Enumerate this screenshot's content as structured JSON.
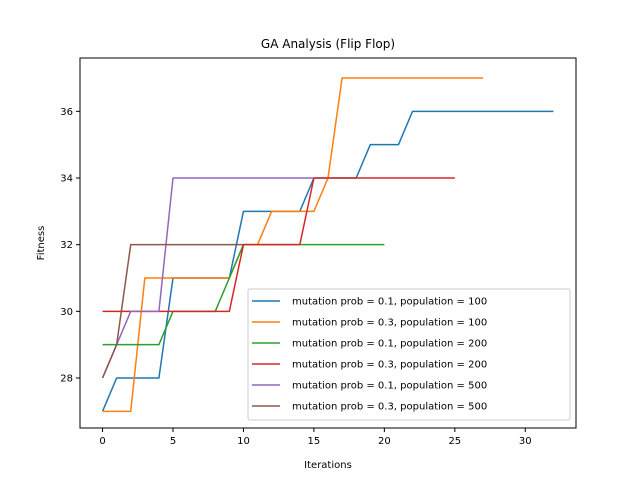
{
  "chart_data": {
    "type": "line",
    "title": "GA Analysis (Flip Flop)",
    "xlabel": "Iterations",
    "ylabel": "Fitness",
    "xlim": [
      -1.6,
      33.6
    ],
    "ylim": [
      26.5,
      37.6
    ],
    "xticks": [
      0,
      5,
      10,
      15,
      20,
      25,
      30
    ],
    "yticks": [
      28,
      30,
      32,
      34,
      36
    ],
    "grid": false,
    "legend_position": "lower-right",
    "series": [
      {
        "name": "mutation prob = 0.1, population = 100",
        "color": "#1f77b4",
        "x": [
          0,
          1,
          2,
          3,
          4,
          5,
          6,
          7,
          8,
          9,
          10,
          11,
          12,
          13,
          14,
          15,
          16,
          17,
          18,
          19,
          20,
          21,
          22,
          23,
          24,
          25,
          26,
          27,
          28,
          29,
          30,
          31,
          32
        ],
        "y": [
          27,
          28,
          28,
          28,
          28,
          31,
          31,
          31,
          31,
          31,
          33,
          33,
          33,
          33,
          33,
          34,
          34,
          34,
          34,
          35,
          35,
          35,
          36,
          36,
          36,
          36,
          36,
          36,
          36,
          36,
          36,
          36,
          36
        ]
      },
      {
        "name": "mutation prob = 0.3, population = 100",
        "color": "#ff7f0e",
        "x": [
          0,
          1,
          2,
          3,
          4,
          5,
          6,
          7,
          8,
          9,
          10,
          11,
          12,
          13,
          14,
          15,
          16,
          17,
          18,
          19,
          20,
          21,
          22,
          23,
          24,
          25,
          26,
          27
        ],
        "y": [
          27,
          27,
          27,
          31,
          31,
          31,
          31,
          31,
          31,
          31,
          32,
          32,
          33,
          33,
          33,
          33,
          34,
          37,
          37,
          37,
          37,
          37,
          37,
          37,
          37,
          37,
          37,
          37
        ]
      },
      {
        "name": "mutation prob = 0.1, population = 200",
        "color": "#2ca02c",
        "x": [
          0,
          1,
          2,
          3,
          4,
          5,
          6,
          7,
          8,
          9,
          10,
          11,
          12,
          13,
          14,
          15,
          16,
          17,
          18,
          19,
          20
        ],
        "y": [
          29,
          29,
          29,
          29,
          29,
          30,
          30,
          30,
          30,
          31,
          32,
          32,
          32,
          32,
          32,
          32,
          32,
          32,
          32,
          32,
          32
        ]
      },
      {
        "name": "mutation prob = 0.3, population = 200",
        "color": "#d62728",
        "x": [
          0,
          1,
          2,
          3,
          4,
          5,
          6,
          7,
          8,
          9,
          10,
          11,
          12,
          13,
          14,
          15,
          16,
          17,
          18,
          19,
          20,
          21,
          22,
          23,
          24,
          25
        ],
        "y": [
          30,
          30,
          30,
          30,
          30,
          30,
          30,
          30,
          30,
          30,
          32,
          32,
          32,
          32,
          32,
          34,
          34,
          34,
          34,
          34,
          34,
          34,
          34,
          34,
          34,
          34
        ]
      },
      {
        "name": "mutation prob = 0.1, population = 500",
        "color": "#9467bd",
        "x": [
          0,
          1,
          2,
          3,
          4,
          5,
          6,
          7,
          8,
          9,
          10,
          11,
          12,
          13,
          14,
          15
        ],
        "y": [
          28,
          29,
          30,
          30,
          30,
          34,
          34,
          34,
          34,
          34,
          34,
          34,
          34,
          34,
          34,
          34
        ]
      },
      {
        "name": "mutation prob = 0.3, population = 500",
        "color": "#8c564b",
        "x": [
          0,
          1,
          2,
          3,
          4,
          5,
          6,
          7,
          8,
          9,
          10
        ],
        "y": [
          28,
          29,
          32,
          32,
          32,
          32,
          32,
          32,
          32,
          32,
          32
        ]
      }
    ]
  }
}
